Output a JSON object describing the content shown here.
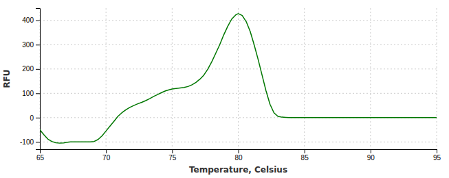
{
  "chart_data": {
    "type": "line",
    "xlabel": "Temperature, Celsius",
    "ylabel": "RFU",
    "x": [
      65.0,
      65.3,
      65.6,
      65.9,
      66.2,
      66.5,
      66.8,
      67.0,
      67.3,
      67.6,
      67.9,
      68.2,
      68.5,
      68.8,
      69.1,
      69.4,
      69.7,
      70.0,
      70.3,
      70.6,
      70.9,
      71.2,
      71.5,
      71.8,
      72.1,
      72.4,
      72.7,
      73.0,
      73.3,
      73.6,
      73.9,
      74.2,
      74.5,
      74.8,
      75.0,
      75.3,
      75.6,
      75.9,
      76.2,
      76.5,
      76.8,
      77.1,
      77.4,
      77.7,
      78.0,
      78.3,
      78.6,
      78.9,
      79.2,
      79.5,
      79.8,
      80.0,
      80.3,
      80.6,
      80.9,
      81.2,
      81.5,
      81.8,
      82.1,
      82.4,
      82.7,
      83.0,
      83.3,
      83.6,
      83.9,
      84.2,
      84.5,
      84.8,
      85.0,
      85.5,
      86.0,
      87.0,
      88.0,
      89.0,
      90.0,
      91.0,
      92.0,
      93.0,
      94.0,
      95.0
    ],
    "values": [
      -50,
      -70,
      -88,
      -98,
      -103,
      -105,
      -104,
      -102,
      -100,
      -100,
      -100,
      -100,
      -100,
      -100,
      -98,
      -90,
      -75,
      -55,
      -35,
      -15,
      5,
      20,
      32,
      42,
      50,
      57,
      63,
      70,
      78,
      87,
      95,
      103,
      110,
      115,
      118,
      120,
      122,
      124,
      128,
      135,
      145,
      158,
      175,
      200,
      230,
      265,
      300,
      340,
      375,
      405,
      422,
      428,
      420,
      395,
      355,
      300,
      240,
      175,
      110,
      55,
      20,
      5,
      2,
      1,
      0,
      0,
      0,
      0,
      0,
      0,
      0,
      0,
      0,
      0,
      0,
      0,
      0,
      0,
      0,
      0
    ],
    "color": "#007700",
    "xlim": [
      65,
      95
    ],
    "ylim": [
      -130,
      450
    ],
    "xticks": [
      65,
      70,
      75,
      80,
      85,
      90,
      95
    ],
    "yticks": [
      -100,
      0,
      100,
      200,
      300,
      400
    ],
    "grid": true
  }
}
